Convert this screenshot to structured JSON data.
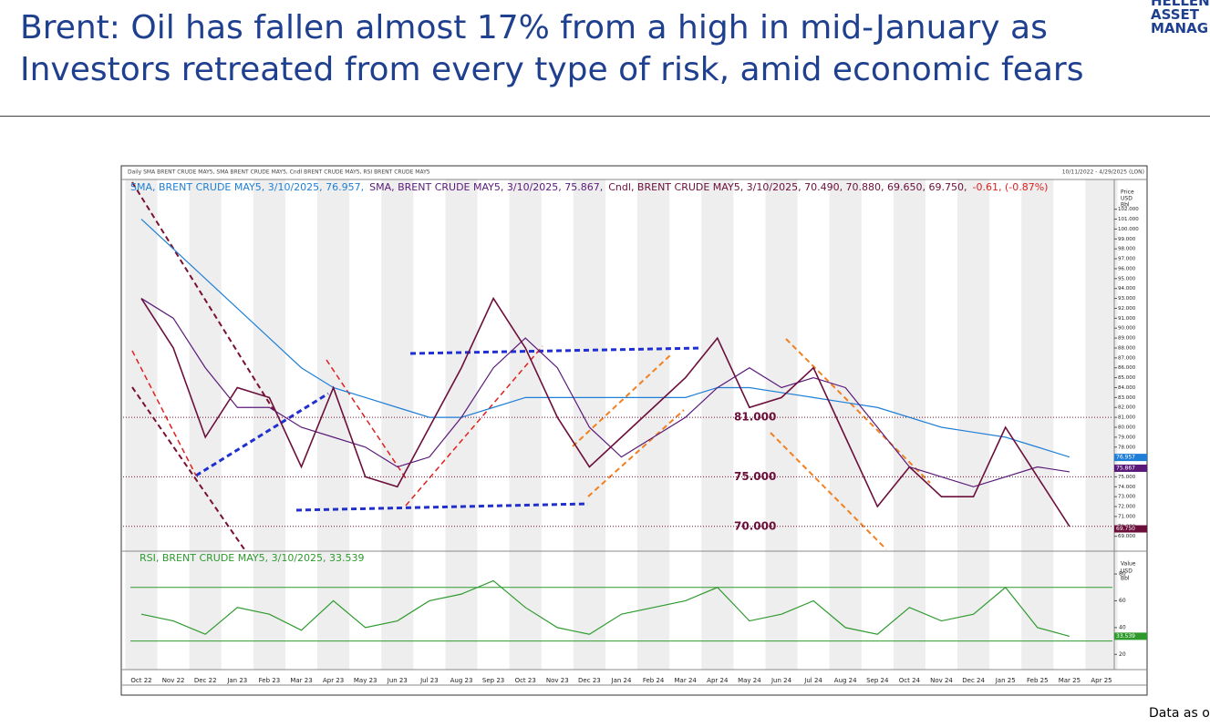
{
  "header": {
    "title_lines": [
      "Brent: Oil has fallen almost 17% from a high in mid-January as",
      "Investors retreated from every type of risk, amid economic fears"
    ],
    "logo": [
      "HELLEN",
      "ASSET",
      "MANAG"
    ]
  },
  "footer": "Data as o",
  "chart_data": {
    "type": "line",
    "caption": "Daily SMA BRENT CRUDE MAY5, SMA BRENT CRUDE MAY5, Cndl BRENT CRUDE MAY5, RSI BRENT CRUDE MAY5",
    "period": "10/11/2022 - 4/29/2025 (LON)",
    "y_axis_label": [
      "Price",
      "USD",
      "Bbl"
    ],
    "categories": [
      "Oct 22",
      "Nov 22",
      "Dec 22",
      "Jan 23",
      "Feb 23",
      "Mar 23",
      "Apr 23",
      "May 23",
      "Jun 23",
      "Jul 23",
      "Aug 23",
      "Sep 23",
      "Oct 23",
      "Nov 23",
      "Dec 23",
      "Jan 24",
      "Feb 24",
      "Mar 24",
      "Apr 24",
      "May 24",
      "Jun 24",
      "Jul 24",
      "Aug 24",
      "Sep 24",
      "Oct 24",
      "Nov 24",
      "Dec 24",
      "Jan 25",
      "Feb 25",
      "Mar 25",
      "Apr 25"
    ],
    "series": [
      {
        "name": "SMA, BRENT CRUDE MAY5, 3/10/2025, 76.957,",
        "color": "#1f7fd6",
        "last": {
          "value": 76.957,
          "label": "76.957"
        },
        "values": [
          101,
          98,
          95,
          92,
          89,
          86,
          84,
          83,
          82,
          81,
          81,
          82,
          83,
          83,
          83,
          83,
          83,
          83,
          84,
          84,
          83.5,
          83,
          82.5,
          82,
          81,
          80,
          79.5,
          79,
          78,
          77,
          null
        ]
      },
      {
        "name": "SMA, BRENT CRUDE MAY5, 3/10/2025, 75.867,",
        "color": "#5a1a7a",
        "last": {
          "value": 75.867,
          "label": "75.867"
        },
        "values": [
          93,
          91,
          86,
          82,
          82,
          80,
          79,
          78,
          76,
          77,
          81,
          86,
          89,
          86,
          80,
          77,
          79,
          81,
          84,
          86,
          84,
          85,
          84,
          80,
          76,
          75,
          74,
          75,
          76,
          75.5,
          null
        ]
      },
      {
        "name": "Cndl, BRENT CRUDE MAY5, 3/10/2025, 70.490, 70.880, 69.650, 69.750,",
        "change": "-0.61, (-0.87%)",
        "color": "#6b0f3a",
        "last": {
          "value": 69.75,
          "label": "69.750"
        },
        "values": [
          93,
          88,
          79,
          84,
          83,
          76,
          84,
          75,
          74,
          80,
          86,
          93,
          88,
          81,
          76,
          79,
          82,
          85,
          89,
          82,
          83,
          86,
          79,
          72,
          76,
          73,
          73,
          80,
          75,
          70,
          null
        ]
      }
    ],
    "levels": [
      {
        "value": 81,
        "label": "81.000"
      },
      {
        "value": 75,
        "label": "75.000"
      },
      {
        "value": 70,
        "label": "70.000"
      }
    ],
    "ylim": [
      67.5,
      105
    ],
    "yticks": [
      {
        "value": 69,
        "label": "69.000"
      },
      {
        "value": 70,
        "label": "70.000"
      },
      {
        "value": 71,
        "label": "71.000"
      },
      {
        "value": 72,
        "label": "72.000"
      },
      {
        "value": 73,
        "label": "73.000"
      },
      {
        "value": 74,
        "label": "74.000"
      },
      {
        "value": 75,
        "label": "75.000"
      },
      {
        "value": 76,
        "label": "76.000"
      },
      {
        "value": 77,
        "label": "77.000"
      },
      {
        "value": 78,
        "label": "78.000"
      },
      {
        "value": 79,
        "label": "79.000"
      },
      {
        "value": 80,
        "label": "80.000"
      },
      {
        "value": 81,
        "label": "81.000"
      },
      {
        "value": 82,
        "label": "82.000"
      },
      {
        "value": 83,
        "label": "83.000"
      },
      {
        "value": 84,
        "label": "84.000"
      },
      {
        "value": 85,
        "label": "85.000"
      },
      {
        "value": 86,
        "label": "86.000"
      },
      {
        "value": 87,
        "label": "87.000"
      },
      {
        "value": 88,
        "label": "88.000"
      },
      {
        "value": 89,
        "label": "89.000"
      },
      {
        "value": 90,
        "label": "90.000"
      },
      {
        "value": 91,
        "label": "91.000"
      },
      {
        "value": 92,
        "label": "92.000"
      },
      {
        "value": 93,
        "label": "93.000"
      },
      {
        "value": 94,
        "label": "94.000"
      },
      {
        "value": 95,
        "label": "95.000"
      },
      {
        "value": 96,
        "label": "96.000"
      },
      {
        "value": 97,
        "label": "97.000"
      },
      {
        "value": 98,
        "label": "98.000"
      },
      {
        "value": 99,
        "label": "99.000"
      },
      {
        "value": 100,
        "label": "100.000"
      },
      {
        "value": 101,
        "label": "101.000"
      },
      {
        "value": 102,
        "label": "102.000"
      }
    ],
    "rsi": {
      "name": "RSI, BRENT CRUDE MAY5, 3/10/2025, 33.539",
      "color": "#2e9a2e",
      "y_axis_label": [
        "Value",
        "USD",
        "Bbl"
      ],
      "last": {
        "value": 33.539,
        "label": "33.539"
      },
      "values": [
        50,
        45,
        35,
        55,
        50,
        38,
        60,
        40,
        45,
        60,
        65,
        75,
        55,
        40,
        35,
        50,
        55,
        60,
        70,
        45,
        50,
        60,
        40,
        35,
        55,
        45,
        50,
        70,
        40,
        33.5,
        null
      ],
      "levels": [
        70,
        30
      ],
      "ylim": [
        10,
        95
      ],
      "yticks": [
        20,
        40,
        60,
        80
      ]
    }
  }
}
